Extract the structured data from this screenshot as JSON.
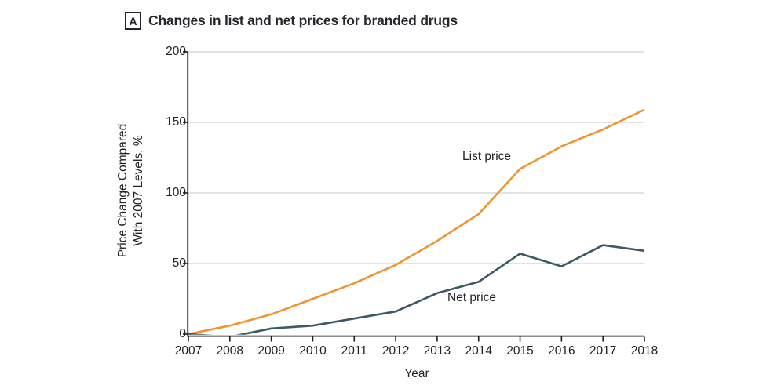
{
  "header": {
    "panel_label": "A",
    "title": "Changes in list and net prices for branded drugs"
  },
  "chart_data": {
    "type": "line",
    "title": "Changes in list and net prices for branded drugs",
    "x": [
      2007,
      2008,
      2009,
      2010,
      2011,
      2012,
      2013,
      2014,
      2015,
      2016,
      2017,
      2018
    ],
    "series": [
      {
        "name": "List price",
        "color": "#EE9431",
        "values": [
          0,
          6,
          14,
          25,
          36,
          49,
          66,
          85,
          117,
          133,
          145,
          159
        ]
      },
      {
        "name": "Net price",
        "color": "#3C5A64",
        "values": [
          0,
          -2,
          4,
          6,
          11,
          16,
          29,
          37,
          57,
          48,
          63,
          59
        ]
      }
    ],
    "series_labels": {
      "list": "List price",
      "net": "Net price"
    },
    "xlabel": "Year",
    "ylabel": "Price Change Compared With 2007 Levels, %",
    "ylabel_lines": [
      "Price Change Compared",
      "With 2007 Levels, %"
    ],
    "ylim": [
      0,
      200
    ],
    "yticks": [
      0,
      50,
      100,
      150,
      200
    ],
    "grid": "horizontal",
    "legend_position": "inline-annotations",
    "colors": {
      "list_price": "#EE9431",
      "net_price": "#3C5A64",
      "gridline": "#D8D8D8",
      "axis": "#1C1C22",
      "text": "#212126"
    }
  }
}
